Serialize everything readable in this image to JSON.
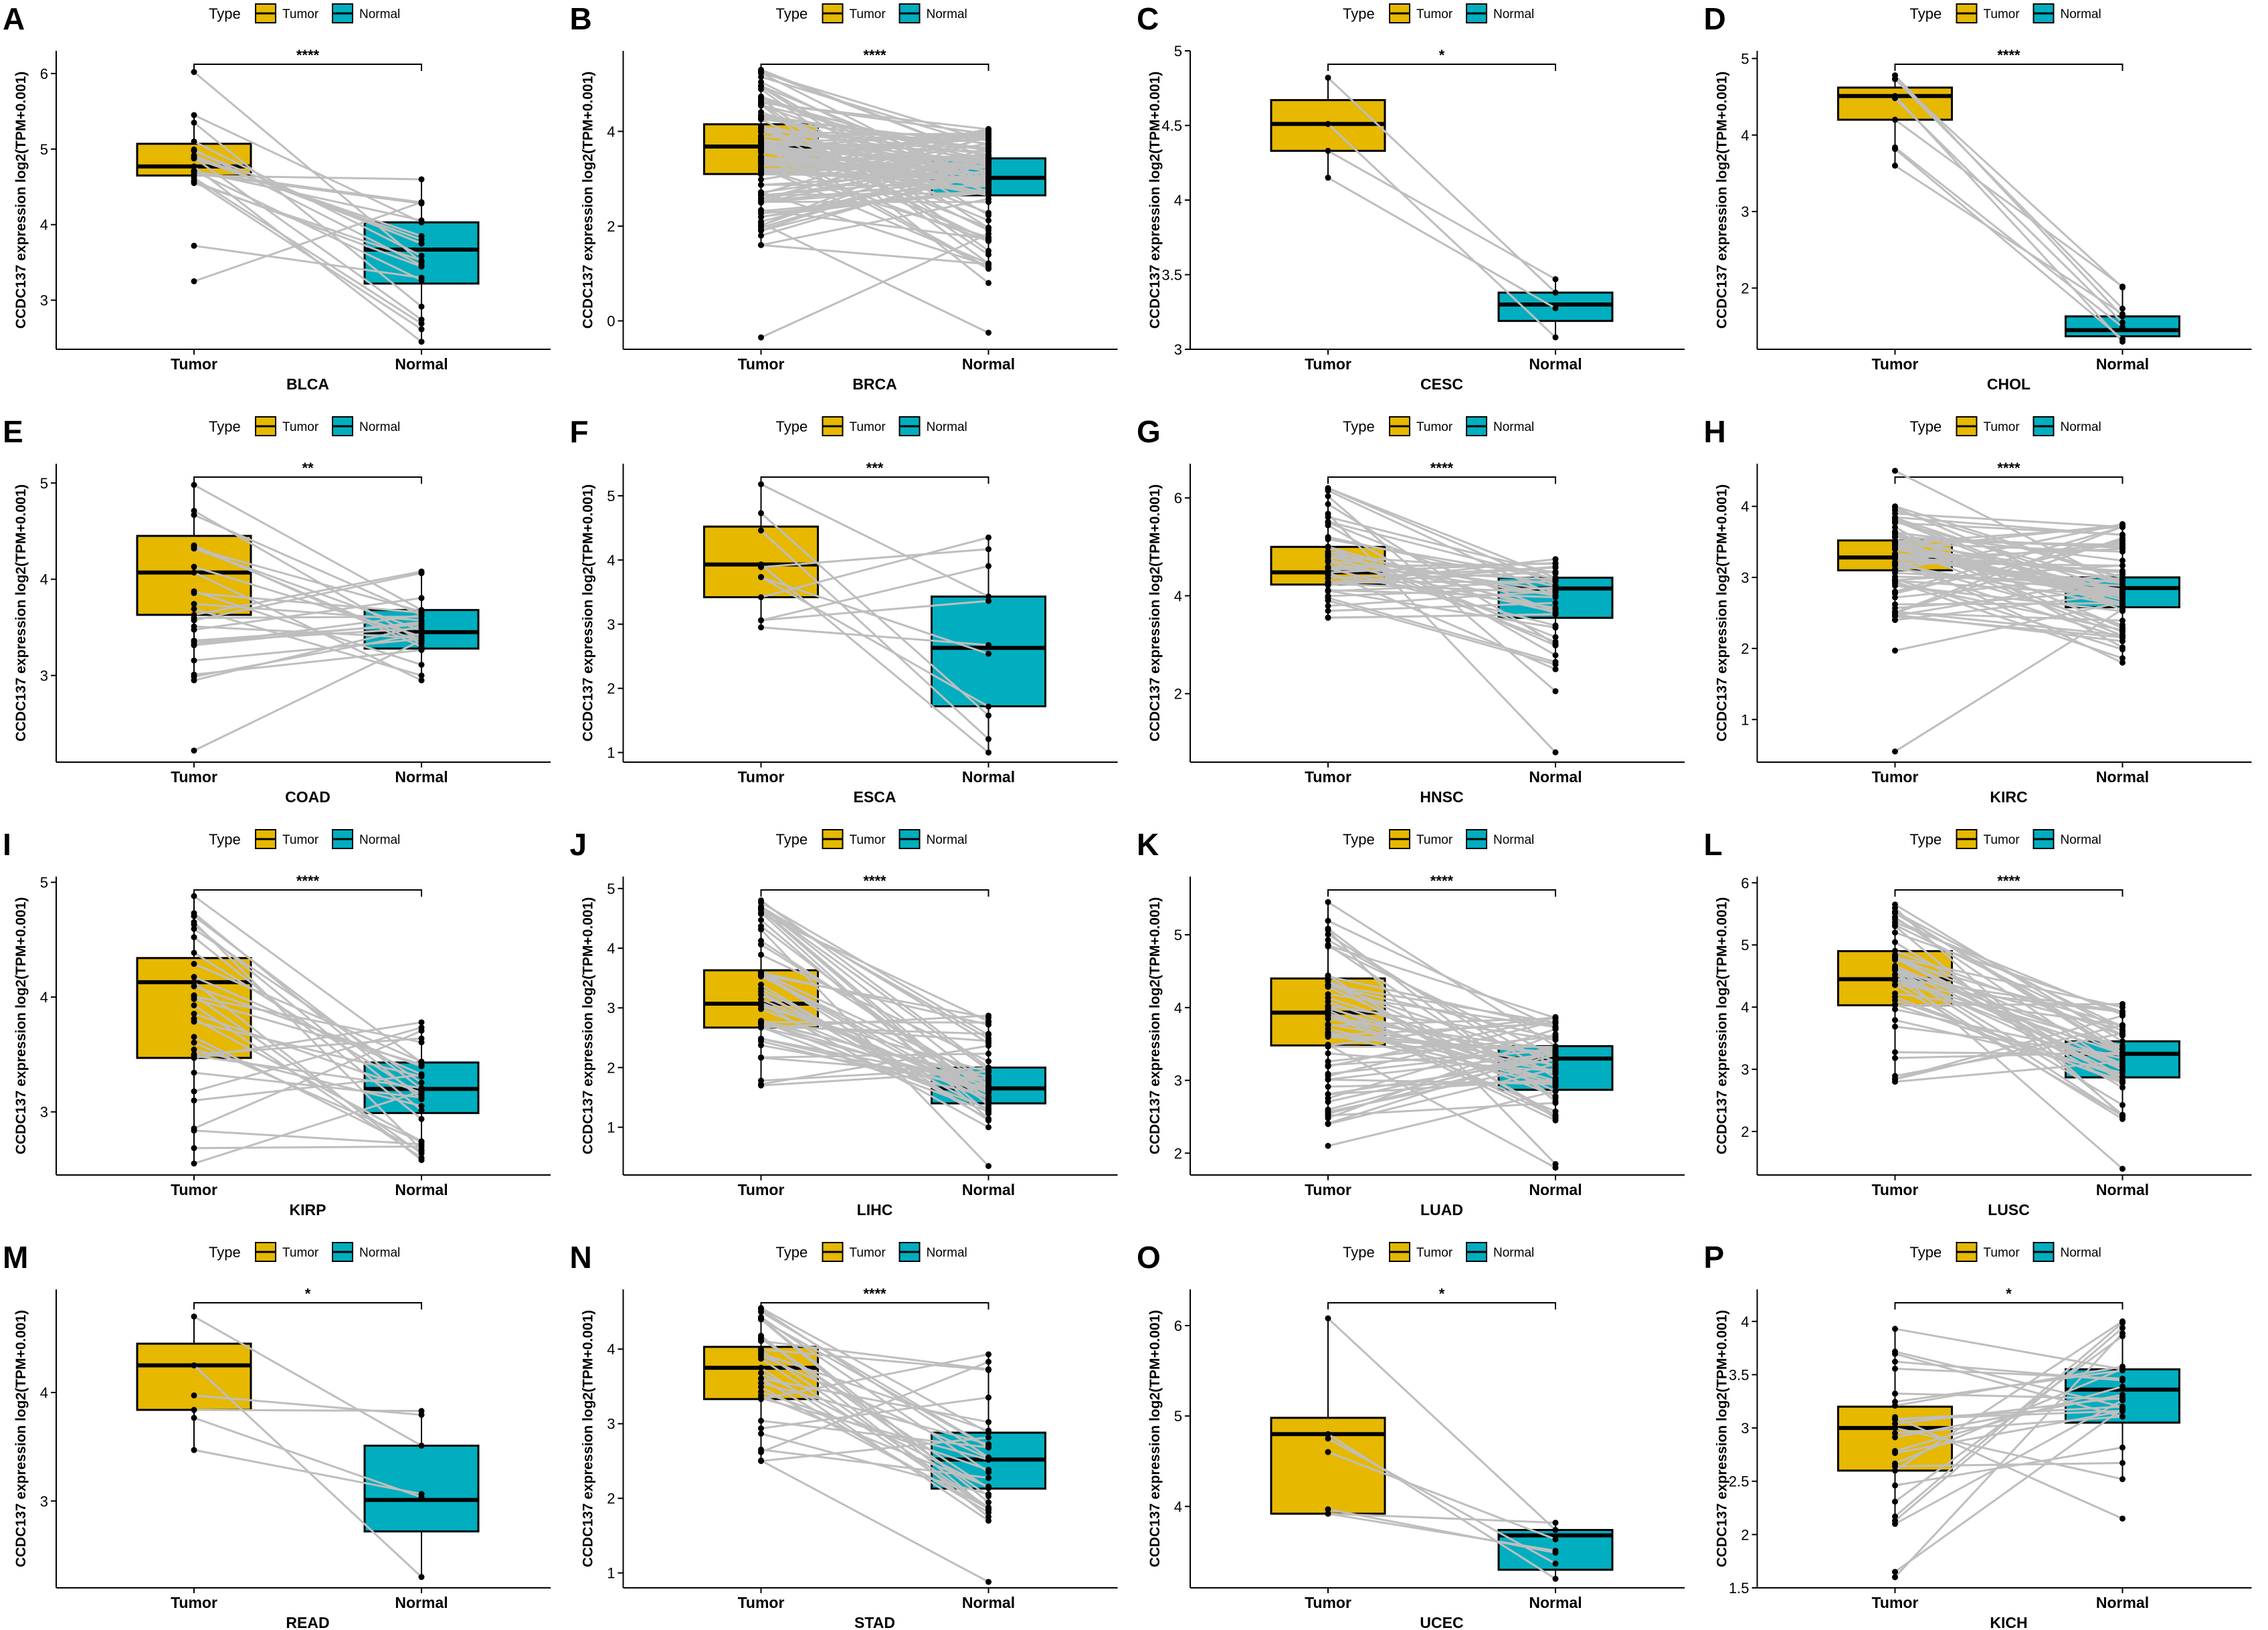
{
  "figure": {
    "legend_title": "Type",
    "y_axis_label": "CCDC137 expression log2(TPM+0.001)",
    "groups": [
      "Tumor",
      "Normal"
    ]
  },
  "colors": {
    "tumor": "#E6B800",
    "normal": "#00AEBF",
    "lines": "#BEBEBE",
    "points": "#000000"
  },
  "chart_data": [
    {
      "letter": "A",
      "type": "box",
      "title": "BLCA",
      "xlabel": "BLCA",
      "ylabel": "CCDC137 expression log2(TPM+0.001)",
      "categories": [
        "Tumor",
        "Normal"
      ],
      "ylim": [
        2.35,
        6.3
      ],
      "yticks": [
        3,
        4,
        5,
        6
      ],
      "sig": "****",
      "n_pairs": 19,
      "boxes": [
        {
          "name": "Tumor",
          "q1": 4.65,
          "median": 4.77,
          "q3": 5.07,
          "lo": 4.55,
          "hi": 5.45
        },
        {
          "name": "Normal",
          "q1": 3.22,
          "median": 3.67,
          "q3": 4.03,
          "lo": 2.45,
          "hi": 4.6
        }
      ],
      "outliers": [
        [
          6.02,
          null
        ],
        [
          3.72,
          null
        ],
        [
          3.25,
          null
        ]
      ]
    },
    {
      "letter": "B",
      "type": "box",
      "title": "BRCA",
      "xlabel": "BRCA",
      "ylabel": "CCDC137 expression log2(TPM+0.001)",
      "categories": [
        "Tumor",
        "Normal"
      ],
      "ylim": [
        -0.6,
        5.7
      ],
      "yticks": [
        0,
        2,
        4
      ],
      "sig": "****",
      "n_pairs": 110,
      "boxes": [
        {
          "name": "Tumor",
          "q1": 3.1,
          "median": 3.68,
          "q3": 4.15,
          "lo": 1.6,
          "hi": 5.3
        },
        {
          "name": "Normal",
          "q1": 2.65,
          "median": 3.02,
          "q3": 3.43,
          "lo": 1.1,
          "hi": 4.05
        }
      ],
      "outliers": [
        [
          -0.35,
          null
        ],
        [
          null,
          -0.25
        ],
        [
          null,
          0.8
        ]
      ]
    },
    {
      "letter": "C",
      "type": "box",
      "title": "CESC",
      "xlabel": "CESC",
      "ylabel": "CCDC137 expression log2(TPM+0.001)",
      "categories": [
        "Tumor",
        "Normal"
      ],
      "ylim": [
        3.0,
        5.0
      ],
      "yticks": [
        3.0,
        3.5,
        4.0,
        4.5,
        5.0
      ],
      "sig": "*",
      "n_pairs": 3,
      "boxes": [
        {
          "name": "Tumor",
          "q1": 4.33,
          "median": 4.51,
          "q3": 4.67,
          "lo": 4.15,
          "hi": 4.82
        },
        {
          "name": "Normal",
          "q1": 3.19,
          "median": 3.3,
          "q3": 3.38,
          "lo": 3.08,
          "hi": 3.47
        }
      ],
      "outliers": []
    },
    {
      "letter": "D",
      "type": "box",
      "title": "CHOL",
      "xlabel": "CHOL",
      "ylabel": "CCDC137 expression log2(TPM+0.001)",
      "categories": [
        "Tumor",
        "Normal"
      ],
      "ylim": [
        1.2,
        5.1
      ],
      "yticks": [
        2,
        3,
        4,
        5
      ],
      "sig": "****",
      "n_pairs": 9,
      "boxes": [
        {
          "name": "Tumor",
          "q1": 4.2,
          "median": 4.51,
          "q3": 4.62,
          "lo": 3.6,
          "hi": 4.78
        },
        {
          "name": "Normal",
          "q1": 1.37,
          "median": 1.45,
          "q3": 1.63,
          "lo": 1.3,
          "hi": 2.02
        }
      ],
      "outliers": []
    },
    {
      "letter": "E",
      "type": "box",
      "title": "COAD",
      "xlabel": "COAD",
      "ylabel": "CCDC137 expression log2(TPM+0.001)",
      "categories": [
        "Tumor",
        "Normal"
      ],
      "ylim": [
        2.1,
        5.2
      ],
      "yticks": [
        3,
        4,
        5
      ],
      "sig": "**",
      "n_pairs": 26,
      "boxes": [
        {
          "name": "Tumor",
          "q1": 3.63,
          "median": 4.07,
          "q3": 4.45,
          "lo": 2.95,
          "hi": 4.98
        },
        {
          "name": "Normal",
          "q1": 3.28,
          "median": 3.45,
          "q3": 3.68,
          "lo": 2.95,
          "hi": 4.08
        }
      ],
      "outliers": [
        [
          2.22,
          null
        ]
      ]
    },
    {
      "letter": "F",
      "type": "box",
      "title": "ESCA",
      "xlabel": "ESCA",
      "ylabel": "CCDC137 expression log2(TPM+0.001)",
      "categories": [
        "Tumor",
        "Normal"
      ],
      "ylim": [
        0.85,
        5.5
      ],
      "yticks": [
        1,
        2,
        3,
        4,
        5
      ],
      "sig": "***",
      "n_pairs": 11,
      "boxes": [
        {
          "name": "Tumor",
          "q1": 3.42,
          "median": 3.93,
          "q3": 4.52,
          "lo": 2.95,
          "hi": 5.18
        },
        {
          "name": "Normal",
          "q1": 1.72,
          "median": 2.63,
          "q3": 3.43,
          "lo": 1.0,
          "hi": 4.35
        }
      ],
      "outliers": []
    },
    {
      "letter": "G",
      "type": "box",
      "title": "HNSC",
      "xlabel": "HNSC",
      "ylabel": "CCDC137 expression log2(TPM+0.001)",
      "categories": [
        "Tumor",
        "Normal"
      ],
      "ylim": [
        0.6,
        6.7
      ],
      "yticks": [
        2,
        4,
        6
      ],
      "sig": "****",
      "n_pairs": 43,
      "boxes": [
        {
          "name": "Tumor",
          "q1": 4.23,
          "median": 4.48,
          "q3": 5.0,
          "lo": 3.55,
          "hi": 6.2
        },
        {
          "name": "Normal",
          "q1": 3.55,
          "median": 4.15,
          "q3": 4.37,
          "lo": 2.5,
          "hi": 4.75
        }
      ],
      "outliers": [
        [
          null,
          2.05
        ],
        [
          null,
          0.8
        ]
      ]
    },
    {
      "letter": "H",
      "type": "box",
      "title": "KIRC",
      "xlabel": "KIRC",
      "ylabel": "CCDC137 expression log2(TPM+0.001)",
      "categories": [
        "Tumor",
        "Normal"
      ],
      "ylim": [
        0.4,
        4.6
      ],
      "yticks": [
        1,
        2,
        3,
        4
      ],
      "sig": "****",
      "n_pairs": 72,
      "boxes": [
        {
          "name": "Tumor",
          "q1": 3.1,
          "median": 3.28,
          "q3": 3.52,
          "lo": 2.4,
          "hi": 4.0
        },
        {
          "name": "Normal",
          "q1": 2.58,
          "median": 2.85,
          "q3": 3.0,
          "lo": 1.8,
          "hi": 3.75
        }
      ],
      "outliers": [
        [
          4.5,
          null
        ],
        [
          1.97,
          null
        ],
        [
          0.55,
          null
        ]
      ]
    },
    {
      "letter": "I",
      "type": "box",
      "title": "KIRP",
      "xlabel": "KIRP",
      "ylabel": "CCDC137 expression log2(TPM+0.001)",
      "categories": [
        "Tumor",
        "Normal"
      ],
      "ylim": [
        2.45,
        5.05
      ],
      "yticks": [
        3,
        4,
        5
      ],
      "sig": "****",
      "n_pairs": 32,
      "boxes": [
        {
          "name": "Tumor",
          "q1": 3.47,
          "median": 4.13,
          "q3": 4.34,
          "lo": 2.55,
          "hi": 4.88
        },
        {
          "name": "Normal",
          "q1": 2.99,
          "median": 3.2,
          "q3": 3.43,
          "lo": 2.58,
          "hi": 3.78
        }
      ],
      "outliers": []
    },
    {
      "letter": "J",
      "type": "box",
      "title": "LIHC",
      "xlabel": "LIHC",
      "ylabel": "CCDC137 expression log2(TPM+0.001)",
      "categories": [
        "Tumor",
        "Normal"
      ],
      "ylim": [
        0.2,
        5.2
      ],
      "yticks": [
        1,
        2,
        3,
        4,
        5
      ],
      "sig": "****",
      "n_pairs": 50,
      "boxes": [
        {
          "name": "Tumor",
          "q1": 2.67,
          "median": 3.07,
          "q3": 3.63,
          "lo": 1.7,
          "hi": 4.8
        },
        {
          "name": "Normal",
          "q1": 1.4,
          "median": 1.65,
          "q3": 2.0,
          "lo": 1.0,
          "hi": 2.87
        }
      ],
      "outliers": [
        [
          null,
          0.35
        ]
      ]
    },
    {
      "letter": "K",
      "type": "box",
      "title": "LUAD",
      "xlabel": "LUAD",
      "ylabel": "CCDC137 expression log2(TPM+0.001)",
      "categories": [
        "Tumor",
        "Normal"
      ],
      "ylim": [
        1.7,
        5.8
      ],
      "yticks": [
        2,
        3,
        4,
        5
      ],
      "sig": "****",
      "n_pairs": 58,
      "boxes": [
        {
          "name": "Tumor",
          "q1": 3.48,
          "median": 3.93,
          "q3": 4.4,
          "lo": 2.4,
          "hi": 5.45
        },
        {
          "name": "Normal",
          "q1": 2.87,
          "median": 3.3,
          "q3": 3.47,
          "lo": 2.45,
          "hi": 3.87
        }
      ],
      "outliers": [
        [
          2.1,
          null
        ],
        [
          null,
          1.85
        ],
        [
          null,
          1.8
        ]
      ]
    },
    {
      "letter": "L",
      "type": "box",
      "title": "LUSC",
      "xlabel": "LUSC",
      "ylabel": "CCDC137 expression log2(TPM+0.001)",
      "categories": [
        "Tumor",
        "Normal"
      ],
      "ylim": [
        1.3,
        6.1
      ],
      "yticks": [
        2,
        3,
        4,
        5,
        6
      ],
      "sig": "****",
      "n_pairs": 49,
      "boxes": [
        {
          "name": "Tumor",
          "q1": 4.03,
          "median": 4.45,
          "q3": 4.9,
          "lo": 2.8,
          "hi": 5.65
        },
        {
          "name": "Normal",
          "q1": 2.87,
          "median": 3.25,
          "q3": 3.45,
          "lo": 2.2,
          "hi": 4.05
        }
      ],
      "outliers": [
        [
          null,
          1.4
        ]
      ]
    },
    {
      "letter": "M",
      "type": "box",
      "title": "READ",
      "xlabel": "READ",
      "ylabel": "CCDC137 expression log2(TPM+0.001)",
      "categories": [
        "Tumor",
        "Normal"
      ],
      "ylim": [
        2.2,
        4.95
      ],
      "yticks": [
        3,
        4
      ],
      "sig": "*",
      "n_pairs": 6,
      "boxes": [
        {
          "name": "Tumor",
          "q1": 3.84,
          "median": 4.25,
          "q3": 4.45,
          "lo": 3.47,
          "hi": 4.7
        },
        {
          "name": "Normal",
          "q1": 2.72,
          "median": 3.01,
          "q3": 3.51,
          "lo": 2.3,
          "hi": 3.83
        }
      ],
      "outliers": []
    },
    {
      "letter": "N",
      "type": "box",
      "title": "STAD",
      "xlabel": "STAD",
      "ylabel": "CCDC137 expression log2(TPM+0.001)",
      "categories": [
        "Tumor",
        "Normal"
      ],
      "ylim": [
        0.8,
        4.8
      ],
      "yticks": [
        1,
        2,
        3,
        4
      ],
      "sig": "****",
      "n_pairs": 32,
      "boxes": [
        {
          "name": "Tumor",
          "q1": 3.33,
          "median": 3.75,
          "q3": 4.03,
          "lo": 2.5,
          "hi": 4.55
        },
        {
          "name": "Normal",
          "q1": 2.13,
          "median": 2.52,
          "q3": 2.88,
          "lo": 1.7,
          "hi": 3.93
        }
      ],
      "outliers": [
        [
          null,
          0.88
        ]
      ]
    },
    {
      "letter": "O",
      "type": "box",
      "title": "UCEC",
      "xlabel": "UCEC",
      "ylabel": "CCDC137 expression log2(TPM+0.001)",
      "categories": [
        "Tumor",
        "Normal"
      ],
      "ylim": [
        3.1,
        6.4
      ],
      "yticks": [
        4,
        5,
        6
      ],
      "sig": "*",
      "n_pairs": 7,
      "boxes": [
        {
          "name": "Tumor",
          "q1": 3.92,
          "median": 4.8,
          "q3": 4.98,
          "lo": 3.92,
          "hi": 6.08
        },
        {
          "name": "Normal",
          "q1": 3.3,
          "median": 3.68,
          "q3": 3.74,
          "lo": 3.2,
          "hi": 3.82
        }
      ],
      "outliers": []
    },
    {
      "letter": "P",
      "type": "box",
      "title": "KICH",
      "xlabel": "KICH",
      "ylabel": "CCDC137 expression log2(TPM+0.001)",
      "categories": [
        "Tumor",
        "Normal"
      ],
      "ylim": [
        1.5,
        4.3
      ],
      "yticks": [
        1.5,
        2.0,
        2.5,
        3.0,
        3.5,
        4.0
      ],
      "sig": "*",
      "n_pairs": 24,
      "boxes": [
        {
          "name": "Tumor",
          "q1": 2.6,
          "median": 3.0,
          "q3": 3.2,
          "lo": 2.1,
          "hi": 3.93
        },
        {
          "name": "Normal",
          "q1": 3.05,
          "median": 3.36,
          "q3": 3.55,
          "lo": 2.52,
          "hi": 4.0
        }
      ],
      "outliers": [
        [
          1.65,
          null
        ],
        [
          1.6,
          null
        ],
        [
          null,
          2.15
        ]
      ]
    }
  ]
}
